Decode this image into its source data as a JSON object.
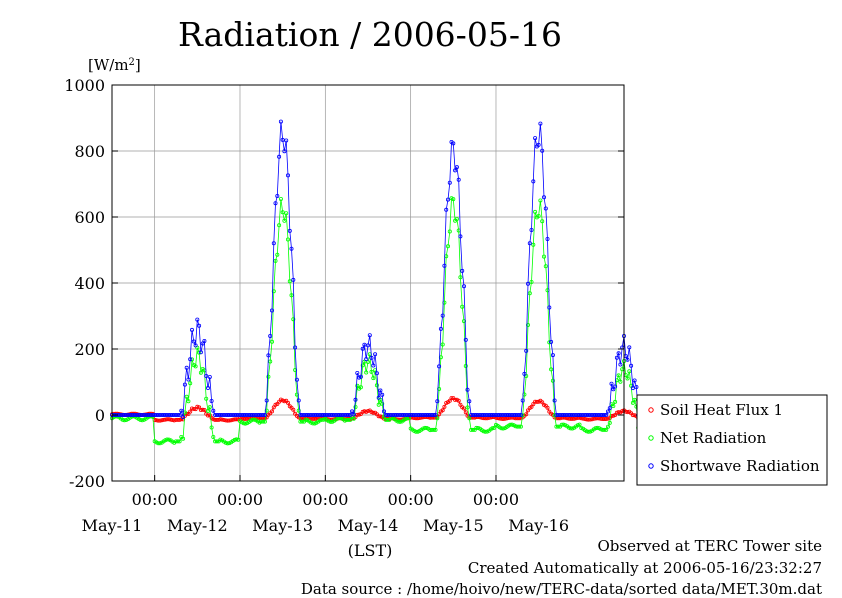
{
  "chart_data": {
    "type": "line",
    "title": "Radiation / 2006-05-16",
    "ylabel_unit": "[W/m",
    "ylabel_unit_sup": "2",
    "ylabel_unit_close": "]",
    "xlabel": "(LST)",
    "ylim": [
      -200,
      1000
    ],
    "yticks": [
      "-200",
      "0",
      "200",
      "400",
      "600",
      "800",
      "1000"
    ],
    "x_start": "2006-05-10 12:00",
    "x_end": "2006-05-16 24:00",
    "time_tick_label": "00:00",
    "day_labels": [
      "May-11",
      "May-12",
      "May-13",
      "May-14",
      "May-15",
      "May-16"
    ],
    "grid": true,
    "legend_position": "right",
    "series": [
      {
        "name": "Soil Heat Flux 1",
        "color": "#ff0000",
        "day_peaks": [
          22,
          45,
          12,
          50,
          42,
          12
        ],
        "night": [
          2,
          -15,
          -10,
          -12,
          -8,
          -10,
          -12
        ]
      },
      {
        "name": "Net Radiation",
        "color": "#00ff00",
        "day_peaks": [
          180,
          630,
          160,
          640,
          630,
          140
        ],
        "night": [
          -10,
          -80,
          -20,
          -15,
          -45,
          -35,
          -45
        ]
      },
      {
        "name": "Shortwave Radiation",
        "color": "#0000ff",
        "day_peaks": [
          255,
          855,
          210,
          805,
          855,
          205
        ],
        "night": [
          0,
          0,
          0,
          0,
          0,
          0,
          0
        ]
      }
    ]
  },
  "footer": {
    "site": "Observed at TERC Tower site",
    "created": "Created Automatically at 2006-05-16/23:32:27",
    "source": "Data source : /home/hoivo/new/TERC-data/sorted  data/MET.30m.dat"
  }
}
